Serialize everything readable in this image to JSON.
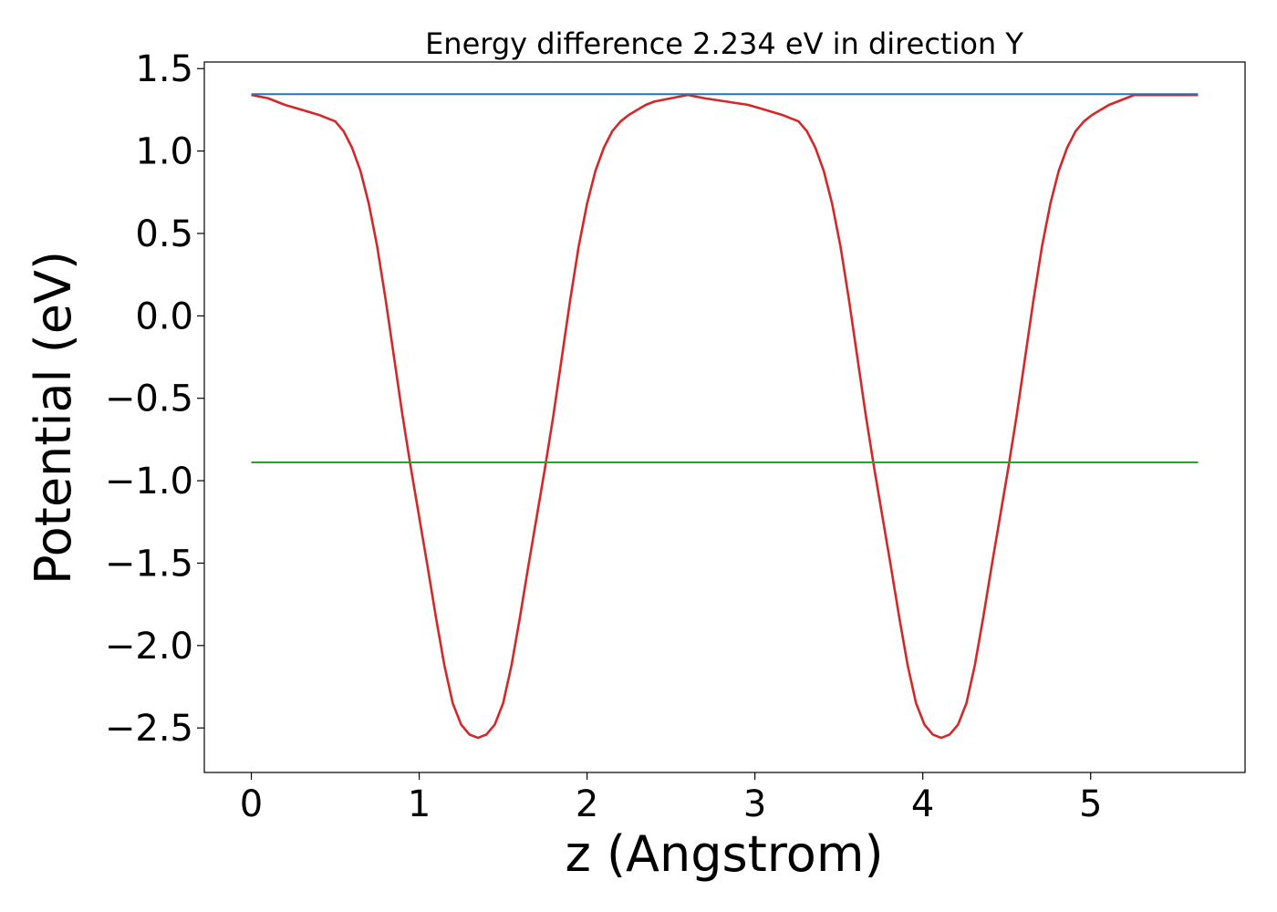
{
  "chart_data": {
    "type": "line",
    "title": "Energy difference 2.234 eV in direction Y",
    "xlabel": "z (Angstrom)",
    "ylabel": "Potential (eV)",
    "xlim": [
      -0.28,
      5.92
    ],
    "ylim": [
      -2.77,
      1.54
    ],
    "xticks": [
      0,
      1,
      2,
      3,
      4,
      5
    ],
    "xtick_labels": [
      "0",
      "1",
      "2",
      "3",
      "4",
      "5"
    ],
    "yticks": [
      1.5,
      1.0,
      0.5,
      0.0,
      -0.5,
      -1.0,
      -1.5,
      -2.0,
      -2.5
    ],
    "ytick_labels": [
      "1.5",
      "1.0",
      "0.5",
      "0.0",
      "−0.5",
      "−1.0",
      "−1.5",
      "−2.0",
      "−2.5"
    ],
    "grid": false,
    "legend": "none",
    "series": [
      {
        "color": "#d62728",
        "x": [
          0.0,
          0.1,
          0.2,
          0.3,
          0.4,
          0.5,
          0.55,
          0.6,
          0.65,
          0.7,
          0.75,
          0.8,
          0.85,
          0.9,
          0.95,
          1.0,
          1.05,
          1.1,
          1.15,
          1.2,
          1.25,
          1.3,
          1.35,
          1.4,
          1.45,
          1.5,
          1.55,
          1.6,
          1.65,
          1.7,
          1.75,
          1.8,
          1.85,
          1.9,
          1.95,
          2.0,
          2.05,
          2.1,
          2.15,
          2.2,
          2.25,
          2.3,
          2.35,
          2.4,
          2.5,
          2.6,
          2.7,
          2.83,
          2.96,
          3.06,
          3.16,
          3.26,
          3.31,
          3.36,
          3.41,
          3.46,
          3.51,
          3.56,
          3.61,
          3.66,
          3.71,
          3.76,
          3.81,
          3.86,
          3.91,
          3.96,
          4.01,
          4.06,
          4.11,
          4.16,
          4.21,
          4.26,
          4.31,
          4.36,
          4.41,
          4.46,
          4.51,
          4.56,
          4.61,
          4.66,
          4.71,
          4.76,
          4.81,
          4.86,
          4.91,
          4.96,
          5.01,
          5.06,
          5.11,
          5.16,
          5.21,
          5.26,
          5.36,
          5.46,
          5.56,
          5.64
        ],
        "y": [
          1.34,
          1.32,
          1.28,
          1.25,
          1.22,
          1.18,
          1.12,
          1.02,
          0.88,
          0.68,
          0.42,
          0.1,
          -0.25,
          -0.6,
          -0.92,
          -1.22,
          -1.52,
          -1.83,
          -2.12,
          -2.35,
          -2.48,
          -2.54,
          -2.56,
          -2.54,
          -2.48,
          -2.35,
          -2.12,
          -1.83,
          -1.52,
          -1.22,
          -0.92,
          -0.6,
          -0.25,
          0.1,
          0.42,
          0.68,
          0.88,
          1.02,
          1.12,
          1.18,
          1.22,
          1.25,
          1.28,
          1.3,
          1.32,
          1.34,
          1.32,
          1.3,
          1.28,
          1.25,
          1.22,
          1.18,
          1.12,
          1.02,
          0.88,
          0.68,
          0.42,
          0.1,
          -0.25,
          -0.6,
          -0.92,
          -1.22,
          -1.52,
          -1.83,
          -2.12,
          -2.35,
          -2.48,
          -2.54,
          -2.56,
          -2.54,
          -2.48,
          -2.35,
          -2.12,
          -1.83,
          -1.52,
          -1.22,
          -0.92,
          -0.6,
          -0.25,
          0.1,
          0.42,
          0.68,
          0.88,
          1.02,
          1.12,
          1.18,
          1.22,
          1.25,
          1.28,
          1.3,
          1.32,
          1.34,
          1.34,
          1.34,
          1.34,
          1.34
        ]
      },
      {
        "color": "#1f77b4",
        "x": [
          0.0,
          5.64
        ],
        "y": [
          1.345,
          1.345
        ]
      },
      {
        "color": "#2ca02c",
        "x": [
          0.0,
          5.64
        ],
        "y": [
          -0.889,
          -0.889
        ]
      }
    ]
  }
}
